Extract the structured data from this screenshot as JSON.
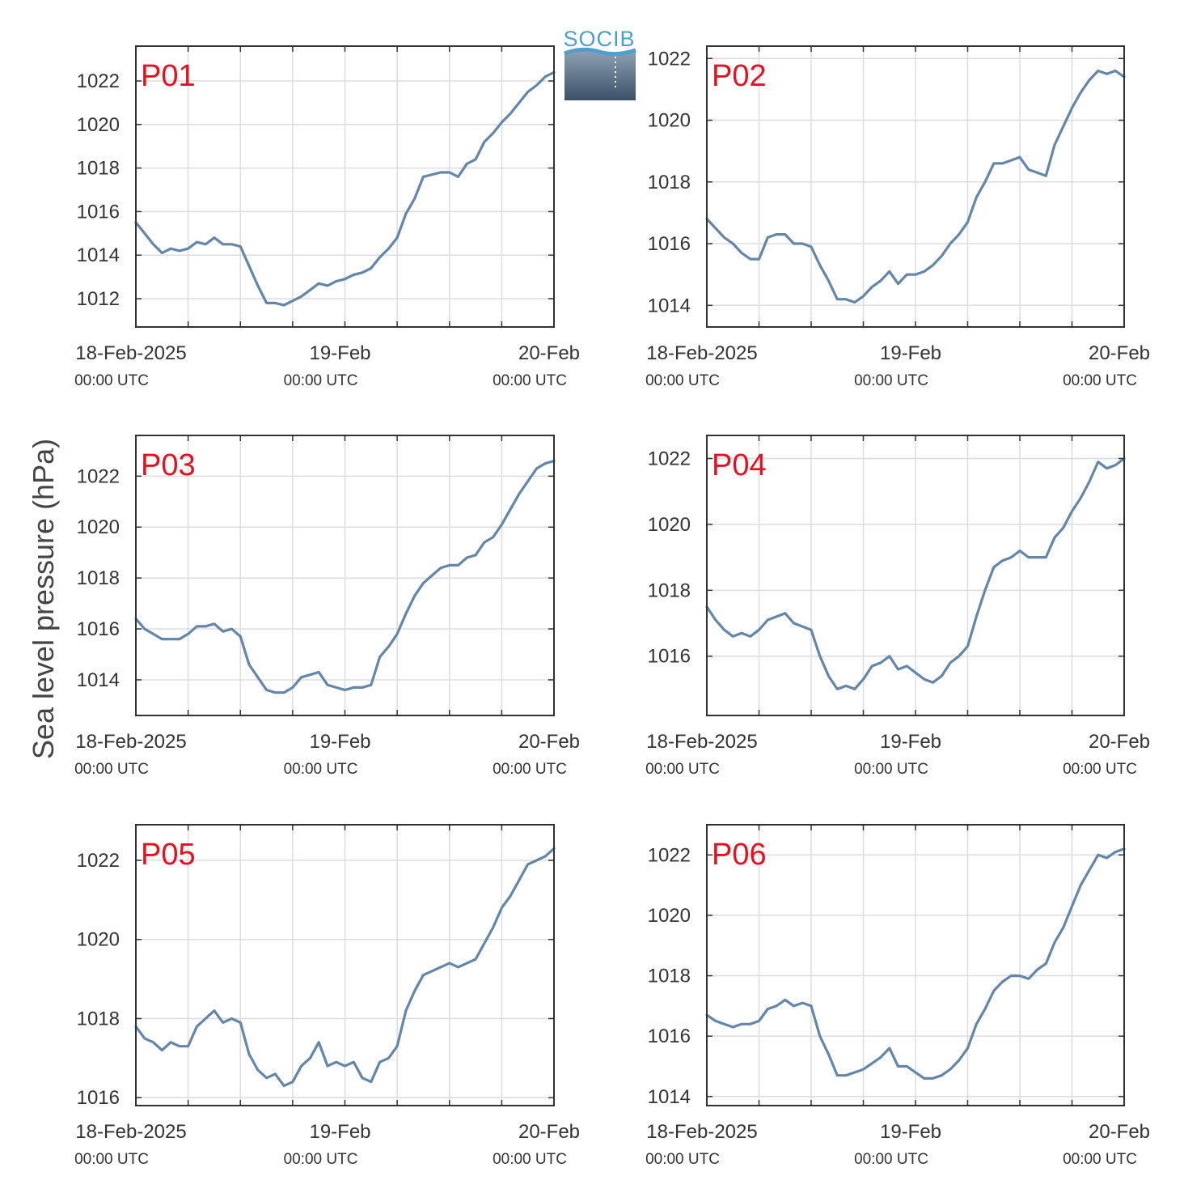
{
  "figure": {
    "ylabel": "Sea level pressure (hPa)",
    "logo_text": "SOCIB"
  },
  "colors": {
    "line": "#6486a8",
    "panel_label": "#e8101e",
    "grid": "#dddddd",
    "axis": "#333333"
  },
  "chart_data": [
    {
      "type": "line",
      "title": "P01",
      "x_unit": "hours since 18-Feb-2025 00:00 UTC",
      "x_ticks": [
        {
          "main": "18-Feb-2025",
          "sub": "00:00 UTC"
        },
        {
          "main": "19-Feb",
          "sub": "00:00 UTC"
        },
        {
          "main": "20-Feb",
          "sub": "00:00 UTC"
        }
      ],
      "xlim": [
        0,
        48
      ],
      "ylim": [
        1010.7,
        1023.6
      ],
      "yticks": [
        1012,
        1014,
        1016,
        1018,
        1020,
        1022
      ],
      "grid": true,
      "x": [
        0,
        1,
        2,
        3,
        4,
        5,
        6,
        7,
        8,
        9,
        10,
        11,
        12,
        13,
        14,
        15,
        16,
        17,
        18,
        19,
        20,
        21,
        22,
        23,
        24,
        25,
        26,
        27,
        28,
        29,
        30,
        31,
        32,
        33,
        34,
        35,
        36,
        37,
        38,
        39,
        40,
        41,
        42,
        43,
        44,
        45,
        46,
        47,
        48
      ],
      "y": [
        1015.5,
        1015,
        1014.5,
        1014.1,
        1014.3,
        1014.2,
        1014.3,
        1014.6,
        1014.5,
        1014.8,
        1014.5,
        1014.5,
        1014.4,
        1013.5,
        1012.6,
        1011.8,
        1011.8,
        1011.7,
        1011.9,
        1012.1,
        1012.4,
        1012.7,
        1012.6,
        1012.8,
        1012.9,
        1013.1,
        1013.2,
        1013.4,
        1013.9,
        1014.3,
        1014.8,
        1015.9,
        1016.6,
        1017.6,
        1017.7,
        1017.8,
        1017.8,
        1017.6,
        1018.2,
        1018.4,
        1019.2,
        1019.6,
        1020.1,
        1020.5,
        1021.0,
        1021.5,
        1021.8,
        1022.2,
        1022.4
      ]
    },
    {
      "type": "line",
      "title": "P02",
      "x_unit": "hours since 18-Feb-2025 00:00 UTC",
      "x_ticks": [
        {
          "main": "18-Feb-2025",
          "sub": "00:00 UTC"
        },
        {
          "main": "19-Feb",
          "sub": "00:00 UTC"
        },
        {
          "main": "20-Feb",
          "sub": "00:00 UTC"
        }
      ],
      "xlim": [
        0,
        48
      ],
      "ylim": [
        1013.3,
        1022.4
      ],
      "yticks": [
        1014,
        1016,
        1018,
        1020,
        1022
      ],
      "grid": true,
      "x": [
        0,
        1,
        2,
        3,
        4,
        5,
        6,
        7,
        8,
        9,
        10,
        11,
        12,
        13,
        14,
        15,
        16,
        17,
        18,
        19,
        20,
        21,
        22,
        23,
        24,
        25,
        26,
        27,
        28,
        29,
        30,
        31,
        32,
        33,
        34,
        35,
        36,
        37,
        38,
        39,
        40,
        41,
        42,
        43,
        44,
        45,
        46,
        47,
        48
      ],
      "y": [
        1016.8,
        1016.5,
        1016.2,
        1016,
        1015.7,
        1015.5,
        1015.5,
        1016.2,
        1016.3,
        1016.3,
        1016,
        1016,
        1015.9,
        1015.3,
        1014.8,
        1014.2,
        1014.2,
        1014.1,
        1014.3,
        1014.6,
        1014.8,
        1015.1,
        1014.7,
        1015.0,
        1015.0,
        1015.1,
        1015.3,
        1015.6,
        1016.0,
        1016.3,
        1016.7,
        1017.5,
        1018.0,
        1018.6,
        1018.6,
        1018.7,
        1018.8,
        1018.4,
        1018.3,
        1018.2,
        1019.2,
        1019.8,
        1020.4,
        1020.9,
        1021.3,
        1021.6,
        1021.5,
        1021.6,
        1021.4
      ]
    },
    {
      "type": "line",
      "title": "P03",
      "x_unit": "hours since 18-Feb-2025 00:00 UTC",
      "x_ticks": [
        {
          "main": "18-Feb-2025",
          "sub": "00:00 UTC"
        },
        {
          "main": "19-Feb",
          "sub": "00:00 UTC"
        },
        {
          "main": "20-Feb",
          "sub": "00:00 UTC"
        }
      ],
      "xlim": [
        0,
        48
      ],
      "ylim": [
        1012.6,
        1023.6
      ],
      "yticks": [
        1014,
        1016,
        1018,
        1020,
        1022
      ],
      "grid": true,
      "x": [
        0,
        1,
        2,
        3,
        4,
        5,
        6,
        7,
        8,
        9,
        10,
        11,
        12,
        13,
        14,
        15,
        16,
        17,
        18,
        19,
        20,
        21,
        22,
        23,
        24,
        25,
        26,
        27,
        28,
        29,
        30,
        31,
        32,
        33,
        34,
        35,
        36,
        37,
        38,
        39,
        40,
        41,
        42,
        43,
        44,
        45,
        46,
        47,
        48
      ],
      "y": [
        1016.4,
        1016.0,
        1015.8,
        1015.6,
        1015.6,
        1015.6,
        1015.8,
        1016.1,
        1016.1,
        1016.2,
        1015.9,
        1016.0,
        1015.7,
        1014.6,
        1014.1,
        1013.6,
        1013.5,
        1013.5,
        1013.7,
        1014.1,
        1014.2,
        1014.3,
        1013.8,
        1013.7,
        1013.6,
        1013.7,
        1013.7,
        1013.8,
        1014.9,
        1015.3,
        1015.8,
        1016.6,
        1017.3,
        1017.8,
        1018.1,
        1018.4,
        1018.5,
        1018.5,
        1018.8,
        1018.9,
        1019.4,
        1019.6,
        1020.1,
        1020.7,
        1021.3,
        1021.8,
        1022.3,
        1022.5,
        1022.6
      ]
    },
    {
      "type": "line",
      "title": "P04",
      "x_unit": "hours since 18-Feb-2025 00:00 UTC",
      "x_ticks": [
        {
          "main": "18-Feb-2025",
          "sub": "00:00 UTC"
        },
        {
          "main": "19-Feb",
          "sub": "00:00 UTC"
        },
        {
          "main": "20-Feb",
          "sub": "00:00 UTC"
        }
      ],
      "xlim": [
        0,
        48
      ],
      "ylim": [
        1014.2,
        1022.7
      ],
      "yticks": [
        1016,
        1018,
        1020,
        1022
      ],
      "grid": true,
      "x": [
        0,
        1,
        2,
        3,
        4,
        5,
        6,
        7,
        8,
        9,
        10,
        11,
        12,
        13,
        14,
        15,
        16,
        17,
        18,
        19,
        20,
        21,
        22,
        23,
        24,
        25,
        26,
        27,
        28,
        29,
        30,
        31,
        32,
        33,
        34,
        35,
        36,
        37,
        38,
        39,
        40,
        41,
        42,
        43,
        44,
        45,
        46,
        47,
        48
      ],
      "y": [
        1017.5,
        1017.1,
        1016.8,
        1016.6,
        1016.7,
        1016.6,
        1016.8,
        1017.1,
        1017.2,
        1017.3,
        1017.0,
        1016.9,
        1016.8,
        1016.0,
        1015.4,
        1015.0,
        1015.1,
        1015.0,
        1015.3,
        1015.7,
        1015.8,
        1016.0,
        1015.6,
        1015.7,
        1015.5,
        1015.3,
        1015.2,
        1015.4,
        1015.8,
        1016.0,
        1016.3,
        1017.2,
        1018.0,
        1018.7,
        1018.9,
        1019.0,
        1019.2,
        1019.0,
        1019.0,
        1019.0,
        1019.6,
        1019.9,
        1020.4,
        1020.8,
        1021.3,
        1021.9,
        1021.7,
        1021.8,
        1022.0
      ]
    },
    {
      "type": "line",
      "title": "P05",
      "x_unit": "hours since 18-Feb-2025 00:00 UTC",
      "x_ticks": [
        {
          "main": "18-Feb-2025",
          "sub": "00:00 UTC"
        },
        {
          "main": "19-Feb",
          "sub": "00:00 UTC"
        },
        {
          "main": "20-Feb",
          "sub": "00:00 UTC"
        }
      ],
      "xlim": [
        0,
        48
      ],
      "ylim": [
        1015.8,
        1022.9
      ],
      "yticks": [
        1016,
        1018,
        1020,
        1022
      ],
      "grid": true,
      "x": [
        0,
        1,
        2,
        3,
        4,
        5,
        6,
        7,
        8,
        9,
        10,
        11,
        12,
        13,
        14,
        15,
        16,
        17,
        18,
        19,
        20,
        21,
        22,
        23,
        24,
        25,
        26,
        27,
        28,
        29,
        30,
        31,
        32,
        33,
        34,
        35,
        36,
        37,
        38,
        39,
        40,
        41,
        42,
        43,
        44,
        45,
        46,
        47,
        48
      ],
      "y": [
        1017.8,
        1017.5,
        1017.4,
        1017.2,
        1017.4,
        1017.3,
        1017.3,
        1017.8,
        1018.0,
        1018.2,
        1017.9,
        1018.0,
        1017.9,
        1017.1,
        1016.7,
        1016.5,
        1016.6,
        1016.3,
        1016.4,
        1016.8,
        1017.0,
        1017.4,
        1016.8,
        1016.9,
        1016.8,
        1016.9,
        1016.5,
        1016.4,
        1016.9,
        1017.0,
        1017.3,
        1018.2,
        1018.7,
        1019.1,
        1019.2,
        1019.3,
        1019.4,
        1019.3,
        1019.4,
        1019.5,
        1019.9,
        1020.3,
        1020.8,
        1021.1,
        1021.5,
        1021.9,
        1022.0,
        1022.1,
        1022.3
      ]
    },
    {
      "type": "line",
      "title": "P06",
      "x_unit": "hours since 18-Feb-2025 00:00 UTC",
      "x_ticks": [
        {
          "main": "18-Feb-2025",
          "sub": "00:00 UTC"
        },
        {
          "main": "19-Feb",
          "sub": "00:00 UTC"
        },
        {
          "main": "20-Feb",
          "sub": "00:00 UTC"
        }
      ],
      "xlim": [
        0,
        48
      ],
      "ylim": [
        1013.7,
        1023.0
      ],
      "yticks": [
        1014,
        1016,
        1018,
        1020,
        1022
      ],
      "grid": true,
      "x": [
        0,
        1,
        2,
        3,
        4,
        5,
        6,
        7,
        8,
        9,
        10,
        11,
        12,
        13,
        14,
        15,
        16,
        17,
        18,
        19,
        20,
        21,
        22,
        23,
        24,
        25,
        26,
        27,
        28,
        29,
        30,
        31,
        32,
        33,
        34,
        35,
        36,
        37,
        38,
        39,
        40,
        41,
        42,
        43,
        44,
        45,
        46,
        47,
        48
      ],
      "y": [
        1016.7,
        1016.5,
        1016.4,
        1016.3,
        1016.4,
        1016.4,
        1016.5,
        1016.9,
        1017.0,
        1017.2,
        1017.0,
        1017.1,
        1017.0,
        1016.0,
        1015.4,
        1014.7,
        1014.7,
        1014.8,
        1014.9,
        1015.1,
        1015.3,
        1015.6,
        1015.0,
        1015.0,
        1014.8,
        1014.6,
        1014.6,
        1014.7,
        1014.9,
        1015.2,
        1015.6,
        1016.4,
        1016.9,
        1017.5,
        1017.8,
        1018.0,
        1018.0,
        1017.9,
        1018.2,
        1018.4,
        1019.1,
        1019.6,
        1020.3,
        1021.0,
        1021.5,
        1022.0,
        1021.9,
        1022.1,
        1022.2
      ]
    }
  ]
}
